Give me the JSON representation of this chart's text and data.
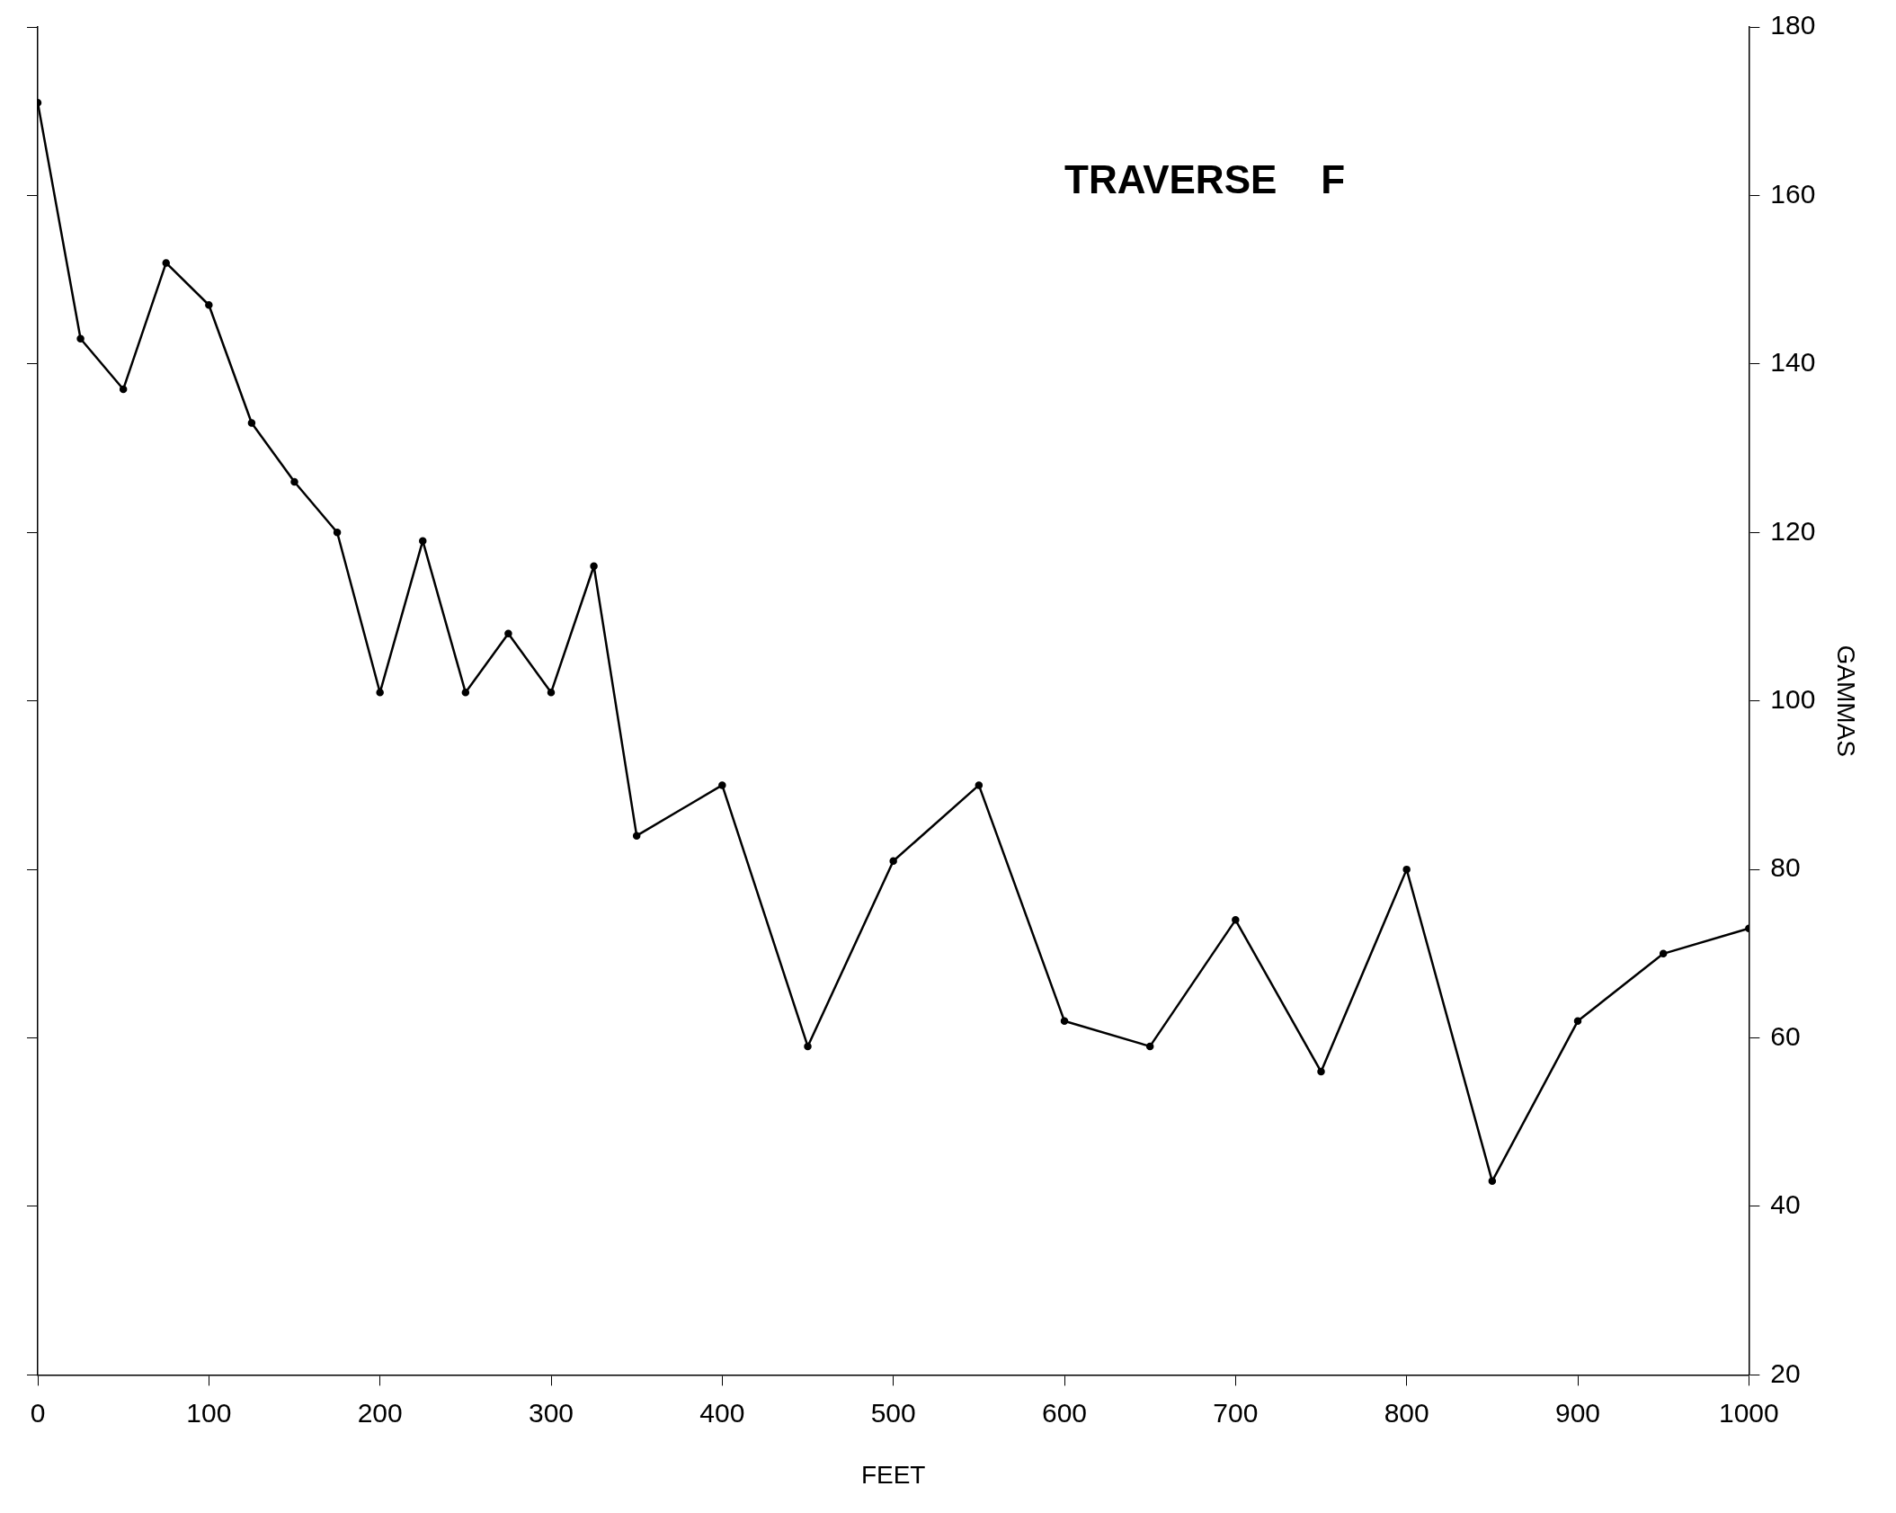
{
  "chart_data": {
    "type": "line",
    "title": "TRAVERSE    F",
    "xlabel": "FEET",
    "ylabel": "GAMMAS",
    "x": [
      0,
      25,
      50,
      75,
      100,
      125,
      150,
      175,
      200,
      225,
      250,
      275,
      300,
      325,
      350,
      400,
      450,
      500,
      550,
      600,
      650,
      700,
      750,
      800,
      850,
      900,
      950,
      1000
    ],
    "series": [
      {
        "color": "#000000",
        "values": [
          171,
          143,
          137,
          152,
          147,
          133,
          126,
          120,
          101,
          119,
          101,
          108,
          101,
          116,
          84,
          90,
          59,
          81,
          90,
          62,
          59,
          74,
          56,
          80,
          43,
          62,
          70,
          73
        ]
      }
    ],
    "xlim": [
      0,
      1000
    ],
    "xticks": [
      0,
      100,
      200,
      300,
      400,
      500,
      600,
      700,
      800,
      900,
      1000
    ],
    "ylim": [
      20,
      180
    ],
    "yticks": [
      20,
      40,
      60,
      80,
      100,
      120,
      140,
      160,
      180
    ],
    "grid": false,
    "legend": false,
    "marker": "circle",
    "line_style": "solid"
  }
}
